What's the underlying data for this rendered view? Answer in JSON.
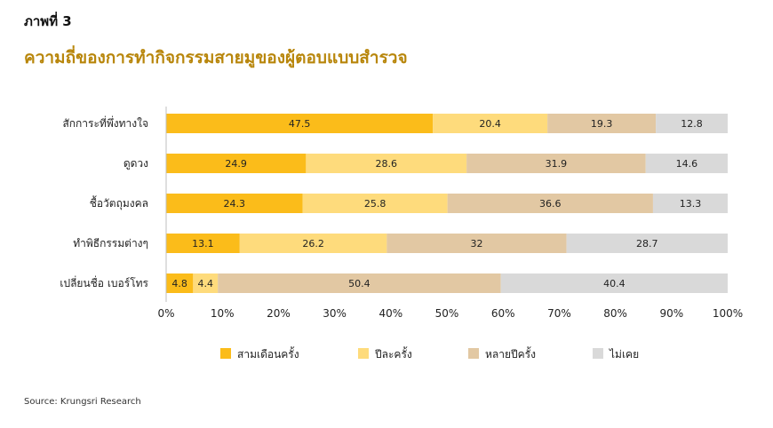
{
  "header": {
    "figure_label": "ภาพที่ 3",
    "title": "ความถี่ของการทำกิจกรรมสายมูของผู้ตอบแบบสำรวจ"
  },
  "source": "Source: Krungsri Research",
  "chart_data": {
    "type": "bar",
    "orientation": "horizontal",
    "stacked": true,
    "percent_stacked": true,
    "categories": [
      "สักการะที่พึ่งทางใจ",
      "ดูดวง",
      "ชื้อวัตถุมงคล",
      "ทำพิธีกรรมต่างๆ",
      "เปลี่ยนชื่อ เบอร์โทร"
    ],
    "series": [
      {
        "name": "สามเดือนครั้ง",
        "color": "#fbbc1a",
        "values": [
          47.5,
          24.9,
          24.3,
          13.1,
          4.8
        ]
      },
      {
        "name": "ปีละครั้ง",
        "color": "#fedb7c",
        "values": [
          20.4,
          28.6,
          25.8,
          26.2,
          4.4
        ]
      },
      {
        "name": "หลายปีครั้ง",
        "color": "#e2c8a3",
        "values": [
          19.3,
          31.9,
          36.6,
          32,
          50.4
        ]
      },
      {
        "name": "ไม่เคย",
        "color": "#d9d9d9",
        "values": [
          12.8,
          14.6,
          13.3,
          28.7,
          40.4
        ]
      }
    ],
    "xticks": [
      "0%",
      "10%",
      "20%",
      "30%",
      "40%",
      "50%",
      "60%",
      "70%",
      "80%",
      "90%",
      "100%"
    ],
    "xlim": [
      0,
      100
    ],
    "grid": false,
    "legend_position": "bottom"
  }
}
